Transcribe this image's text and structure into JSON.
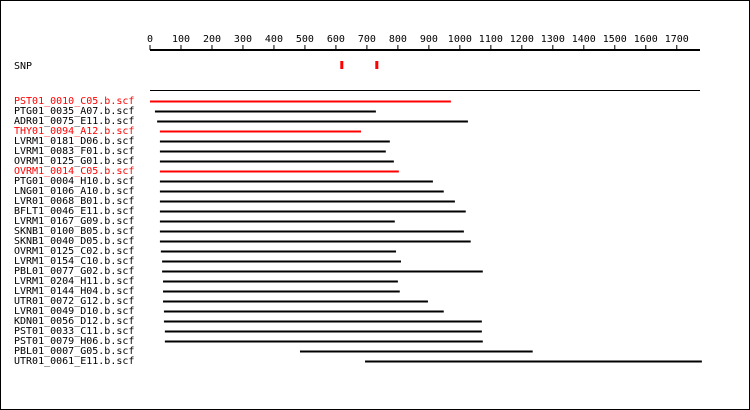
{
  "chart_data": {
    "type": "alignment",
    "snp_label": "SNP",
    "snp_color": "#ff0000",
    "snps": [
      619,
      732
    ],
    "xlim": [
      0,
      1775
    ],
    "xticks": [
      0,
      100,
      200,
      300,
      400,
      500,
      600,
      700,
      800,
      900,
      1000,
      1100,
      1200,
      1300,
      1400,
      1500,
      1600,
      1700
    ],
    "reads": [
      {
        "name": "PST01_0010_C05.b.scf",
        "color": "#ff0000",
        "start": 0,
        "end": 971
      },
      {
        "name": "PTG01_0035_A07.b.scf",
        "color": "#000000",
        "start": 16,
        "end": 729
      },
      {
        "name": "ADR01_0075_E11.b.scf",
        "color": "#000000",
        "start": 23,
        "end": 1026
      },
      {
        "name": "THY01_0094_A12.b.scf",
        "color": "#ff0000",
        "start": 32,
        "end": 681
      },
      {
        "name": "LVRM1_0181_D06.b.scf",
        "color": "#000000",
        "start": 32,
        "end": 774
      },
      {
        "name": "LVRM1_0083_F01.b.scf",
        "color": "#000000",
        "start": 32,
        "end": 761
      },
      {
        "name": "OVRM1_0125_G01.b.scf",
        "color": "#000000",
        "start": 32,
        "end": 787
      },
      {
        "name": "OVRM1_0014_C05.b.scf",
        "color": "#ff0000",
        "start": 32,
        "end": 803
      },
      {
        "name": "PTG01_0004_H10.b.scf",
        "color": "#000000",
        "start": 32,
        "end": 913
      },
      {
        "name": "LNG01_0106_A10.b.scf",
        "color": "#000000",
        "start": 32,
        "end": 948
      },
      {
        "name": "LVR01_0068_B01.b.scf",
        "color": "#000000",
        "start": 32,
        "end": 984
      },
      {
        "name": "BFLT1_0046_E11.b.scf",
        "color": "#000000",
        "start": 32,
        "end": 1019
      },
      {
        "name": "LVRM1_0167_G09.b.scf",
        "color": "#000000",
        "start": 32,
        "end": 790
      },
      {
        "name": "SKNB1_0100_B05.b.scf",
        "color": "#000000",
        "start": 32,
        "end": 1013
      },
      {
        "name": "SKNB1_0040_D05.b.scf",
        "color": "#000000",
        "start": 32,
        "end": 1035
      },
      {
        "name": "OVRM1_0125_C02.b.scf",
        "color": "#000000",
        "start": 35,
        "end": 794
      },
      {
        "name": "LVRM1_0154_C10.b.scf",
        "color": "#000000",
        "start": 39,
        "end": 810
      },
      {
        "name": "PBL01_0077_G02.b.scf",
        "color": "#000000",
        "start": 39,
        "end": 1074
      },
      {
        "name": "LVRM1_0204_H11.b.scf",
        "color": "#000000",
        "start": 42,
        "end": 800
      },
      {
        "name": "LVRM1_0144_H04.b.scf",
        "color": "#000000",
        "start": 42,
        "end": 806
      },
      {
        "name": "UTR01_0072_G12.b.scf",
        "color": "#000000",
        "start": 42,
        "end": 897
      },
      {
        "name": "LVR01_0049_D10.b.scf",
        "color": "#000000",
        "start": 45,
        "end": 948
      },
      {
        "name": "KDN01_0056_D12.b.scf",
        "color": "#000000",
        "start": 45,
        "end": 1071
      },
      {
        "name": "PST01_0033_C11.b.scf",
        "color": "#000000",
        "start": 48,
        "end": 1071
      },
      {
        "name": "PST01_0079_H06.b.scf",
        "color": "#000000",
        "start": 48,
        "end": 1074
      },
      {
        "name": "PBL01_0007_G05.b.scf",
        "color": "#000000",
        "start": 484,
        "end": 1235
      },
      {
        "name": "UTR01_0061_E11.b.scf",
        "color": "#000000",
        "start": 694,
        "end": 1781
      }
    ]
  }
}
